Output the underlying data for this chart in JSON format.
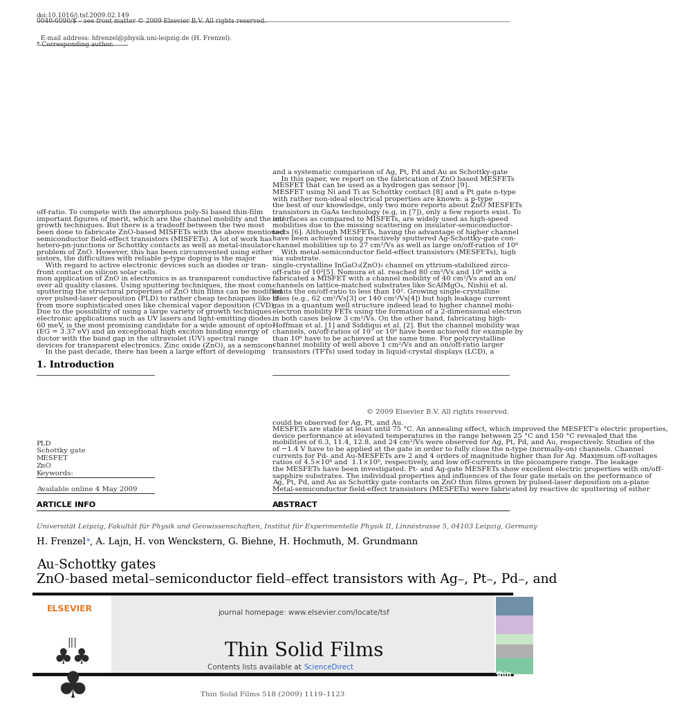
{
  "page_title": "Thin Solid Films 518 (2009) 1119–1123",
  "journal_name": "Thin Solid Films",
  "journal_url": "journal homepage: www.elsevier.com/locate/tsf",
  "contents_line": "Contents lists available at ScienceDirect",
  "paper_title_line1": "ZnO-based metal–semiconductor field–effect transistors with Ag–, Pt–, Pd–, and",
  "paper_title_line2": "Au-Schottky gates",
  "authors_pre": "H. Frenzel ",
  "authors_post": ", A. Lajn, H. von Wenckstern, G. Biehne, H. Hochmuth, M. Grundmann",
  "affiliation": "Universität Leipzig, Fakultät für Physik und Geowissenschaften, Institut für Experimentelle Physik II, Linnéstrasse 5, 04103 Leipzig, Germany",
  "article_info_header": "ARTICLE INFO",
  "abstract_header": "ABSTRACT",
  "available_online": "Available online 4 May 2009",
  "keywords_header": "Keywords:",
  "keywords": [
    "ZnO",
    "MESFET",
    "Schottky gate",
    "PLD"
  ],
  "abstract_lines": [
    "Metal-semiconductor field-effect transistors (MESFETs) were fabricated by reactive dc sputtering of either",
    "Ag, Pt, Pd, and Au as Schottky gate contacts on ZnO thin films grown by pulsed-laser deposition on a-plane",
    "sapphire substrates. The individual properties and influences of the four gate metals on the performance of",
    "the MESFETs have been investigated. Pt- and Ag-gate MESFETs show excellent electric properties with on/off-",
    "ratios of 4.5×10⁸ and  1.1×10⁸, respectively, and low off-currents in the picoampere range. The leakage",
    "currents for Pd- and Au-MESFETs are 2 and 4 orders of magnitude higher than for Ag. Maximum off-voltages",
    "of −1.4 V have to be applied at the gate in order to fully close the n-type (normally-on) channels. Channel",
    "mobilities of 6.3, 11.4, 12.8, and 24 cm²/Vs were observed for Ag, Pt, Pd, and Au, respectively. Studies of the",
    "device performance at elevated temperatures in the range between 25 °C and 150 °C revealed that the",
    "MESFETs are stable at least until 75 °C. An annealing effect, which improved the MESFET’s electric properties,",
    "could be observed for Ag, Pt, and Au."
  ],
  "copyright": "© 2009 Elsevier B.V. All rights reserved.",
  "section1_header": "1. Introduction",
  "intro1_lines": [
    "    In the past decade, there has been a large effort of developing",
    "devices for transparent electronics. Zinc oxide (ZnO), as a semicon-",
    "ductor with the band gap in the ultraviolet (UV) spectral range",
    "(EG = 3.37 eV) and an exceptional high exciton binding energy of",
    "60 meV, is the most promising candidate for a wide amount of opto-",
    "electronic applications such as UV lasers and light-emitting diodes.",
    "Due to the possibility of using a large variety of growth techniques",
    "from more sophisticated ones like chemical vapor deposition (CVD)",
    "over pulsed-laser deposition (PLD) to rather cheap techniques like rf-",
    "sputtering the structural properties of ZnO thin films can be modified",
    "over all quality classes. Using sputtering techniques, the most com-",
    "mon application of ZnO in electronics is as transparent conductive",
    "front contact on silicon solar cells.",
    "    With regard to active electronic devices such as diodes or tran-",
    "sistors, the difficulties with reliable p-type doping is the major",
    "problem of ZnO. However, this has been circumvented using either",
    "hetero-pn-junctions or Schottky contacts as well as metal-insulator-",
    "semiconductor field-effect transistors (MISFETs). A lot of work has",
    "been done to fabricate ZnO-based MISFETs with the above mentioned",
    "growth techniques. But there is a tradeoff between the two most",
    "important figures of merit, which are the channel mobility and the on/",
    "off-ratio. To compete with the amorphous poly-Si based thin-film"
  ],
  "intro2_lines": [
    "transistors (TFTs) used today in liquid-crystal displays (LCD), a",
    "channel mobility of well above 1 cm²/Vs and an on/off-ratio larger",
    "than 10⁶ have to be achieved at the same time. For polycrystalline",
    "channels, on/off-ratios of 10⁷ or 10⁸ have been achieved for example by",
    "Hoffman et al. [1] and Siddiqui et al. [2]. But the channel mobility was",
    "in both cases below 3 cm²/Vs. On the other hand, fabricating high-",
    "electron mobility FETs using the formation of a 2-dimensional electron",
    "gas in a quantum well structure indeed lead to higher channel mobi-",
    "lities (e.g., 62 cm²/Vs[3] or 140 cm²/Vs[4]) but high leakage current",
    "limits the on/off-ratio to less than 10³. Growing single-crystalline",
    "channels on lattice-matched substrates like ScAlMgO₄, Nishii et al.",
    "fabricated a MISFET with a channel mobility of 40 cm²/Vs and an on/",
    "off-ratio of 10²[5]. Nomura et al. reached 80 cm²/Vs and 10⁶ with a",
    "single-crystalline InGaO₃(ZnO)₅ channel on yttrium-stabilized zirco-",
    "nia substrate.",
    "    With metal-semiconductor field-effect transistors (MESFETs), high",
    "channel mobilities up to 27 cm²/Vs as well as large on/off-ratios of 10⁸",
    "have been achieved using reactively sputtered Ag-Schottky-gate con-",
    "tacts [6]. Although MESFETs, having the advantage of higher channel",
    "mobilities due to the missing scattering on insulator-semiconductor-",
    "interfaces as compared to MISFETs, are widely used as high-speed",
    "transistors in GaAs technology (e.g, in [7]), only a few reports exist. To",
    "the best of our knowledge, only two more reports about ZnO MESFETs",
    "with rather non-ideal electrical properties are known: a p-type",
    "MESFET using Ni and Ti as Schottky contact [8] and a Pt gate n-type",
    "MESFET that can be used as a hydrogen gas sensor [9].",
    "    In this paper, we report on the fabrication of ZnO based MESFETs",
    "and a systematic comparison of Ag, Pt, Pd and Au as Schottky-gate"
  ],
  "footer_note1": "* Corresponding author.",
  "footer_note2": "  E-mail address: hfrenzel@physik.uni-leipzig.de (H. Frenzel).",
  "footer_bottom1": "0040-6090/$ – see front matter © 2009 Elsevier B.V. All rights reserved.",
  "footer_bottom2": "doi:10.1016/j.tsf.2009.02.149",
  "bg_color": "#ffffff",
  "header_bg": "#ebebeb",
  "link_color": "#3366cc",
  "elsevier_color": "#e87722",
  "cover_colors": [
    "#7dc8a0",
    "#b0b0b0",
    "#c8e8c8",
    "#d0b8d8",
    "#7090a8"
  ],
  "cover_heights": [
    30,
    25,
    20,
    35,
    35
  ]
}
